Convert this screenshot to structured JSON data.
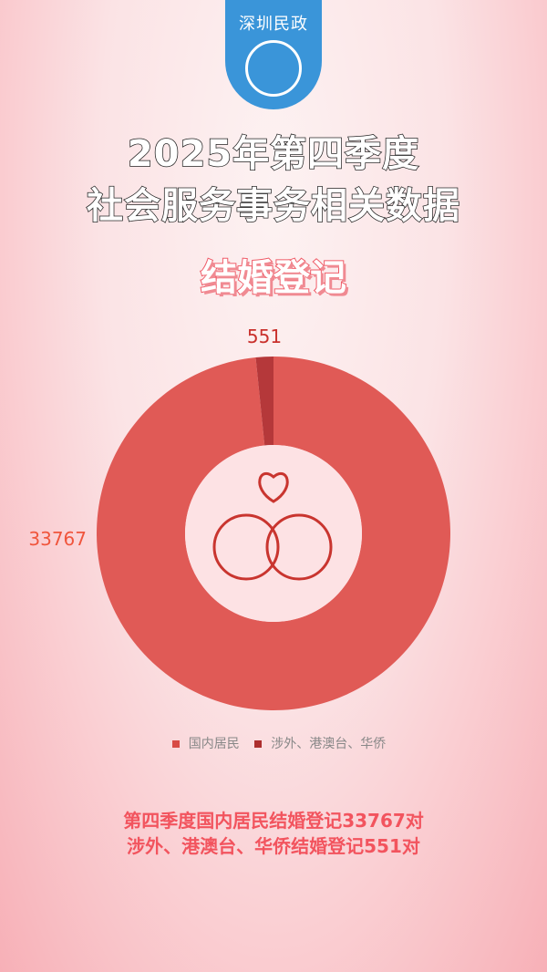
{
  "logo": {
    "text": "深圳民政"
  },
  "title": {
    "line1": "2025年第四季度",
    "line2": "社会服务事务相关数据"
  },
  "section": "结婚登记",
  "chart_data": {
    "type": "pie",
    "donut": true,
    "categories": [
      "国内居民",
      "涉外、港澳台、华侨"
    ],
    "values": [
      33767,
      551
    ],
    "colors": [
      "#e05a56",
      "#b5383a"
    ],
    "data_labels": [
      "33767",
      "551"
    ],
    "legend": "bottom"
  },
  "notes": {
    "line1": "第四季度国内居民结婚登记33767对",
    "line2": "涉外、港澳台、华侨结婚登记551对"
  }
}
